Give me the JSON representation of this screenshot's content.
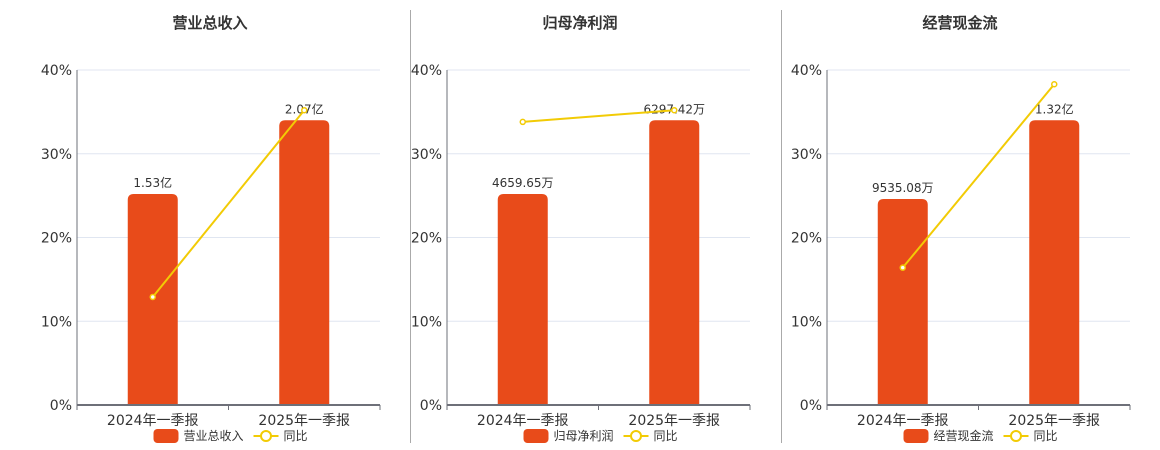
{
  "colors": {
    "bar": "#E84B1A",
    "line": "#F2CB05",
    "grid": "#E0E6F1",
    "axis": "#6E7079",
    "text": "#333333",
    "divider": "#AAAAAA"
  },
  "legend": {
    "line_label": "同比"
  },
  "chart_data": [
    {
      "type": "bar",
      "title": "营业总收入",
      "categories": [
        "2024年一季报",
        "2025年一季报"
      ],
      "series": [
        {
          "name": "营业总收入",
          "type": "bar",
          "values": [
            25.2,
            34.0
          ],
          "labels": [
            "1.53亿",
            "2.07亿"
          ]
        },
        {
          "name": "同比",
          "type": "line",
          "values": [
            12.9,
            35.2
          ]
        }
      ],
      "yticks": [
        "0%",
        "10%",
        "20%",
        "30%",
        "40%"
      ],
      "ylim": [
        0,
        40
      ],
      "grid": true,
      "legend_position": "bottom"
    },
    {
      "type": "bar",
      "title": "归母净利润",
      "categories": [
        "2024年一季报",
        "2025年一季报"
      ],
      "series": [
        {
          "name": "归母净利润",
          "type": "bar",
          "values": [
            25.2,
            34.0
          ],
          "labels": [
            "4659.65万",
            "6297.42万"
          ]
        },
        {
          "name": "同比",
          "type": "line",
          "values": [
            33.8,
            35.2
          ]
        }
      ],
      "yticks": [
        "0%",
        "10%",
        "20%",
        "30%",
        "40%"
      ],
      "ylim": [
        0,
        40
      ],
      "grid": true,
      "legend_position": "bottom"
    },
    {
      "type": "bar",
      "title": "经营现金流",
      "categories": [
        "2024年一季报",
        "2025年一季报"
      ],
      "series": [
        {
          "name": "经营现金流",
          "type": "bar",
          "values": [
            24.6,
            34.0
          ],
          "labels": [
            "9535.08万",
            "1.32亿"
          ]
        },
        {
          "name": "同比",
          "type": "line",
          "values": [
            16.4,
            38.3
          ]
        }
      ],
      "yticks": [
        "0%",
        "10%",
        "20%",
        "30%",
        "40%"
      ],
      "ylim": [
        0,
        40
      ],
      "grid": true,
      "legend_position": "bottom"
    }
  ]
}
